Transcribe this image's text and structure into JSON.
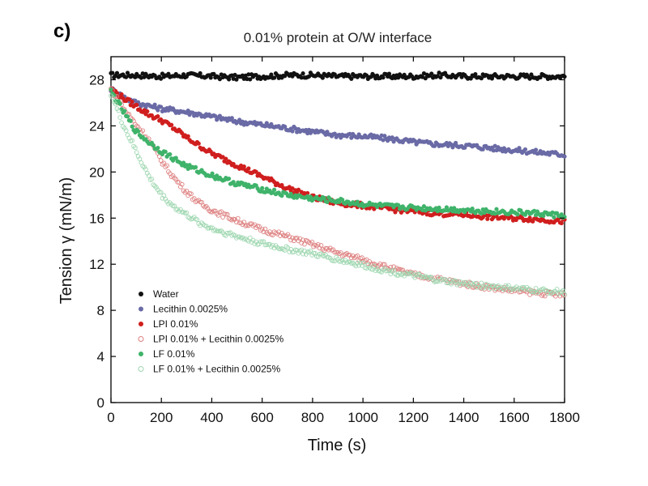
{
  "figure": {
    "panel_label": "c)"
  },
  "chart_data": {
    "type": "scatter",
    "title": "0.01% protein at O/W interface",
    "xlabel": "Time (s)",
    "ylabel": "Tension γ (mN/m)",
    "xlim": [
      0,
      1800
    ],
    "ylim": [
      0,
      30
    ],
    "xticks": [
      0,
      200,
      400,
      600,
      800,
      1000,
      1200,
      1400,
      1600,
      1800
    ],
    "yticks": [
      0,
      4,
      8,
      12,
      16,
      20,
      24,
      28
    ],
    "grid": false,
    "legend_position": "bottom-left",
    "series": [
      {
        "name": "Water",
        "color": "#111111",
        "marker": "filled",
        "points": [
          [
            0,
            28.4
          ],
          [
            100,
            28.4
          ],
          [
            200,
            28.3
          ],
          [
            300,
            28.4
          ],
          [
            400,
            28.3
          ],
          [
            500,
            28.2
          ],
          [
            600,
            28.3
          ],
          [
            700,
            28.4
          ],
          [
            800,
            28.4
          ],
          [
            900,
            28.3
          ],
          [
            1000,
            28.3
          ],
          [
            1100,
            28.3
          ],
          [
            1200,
            28.3
          ],
          [
            1300,
            28.4
          ],
          [
            1400,
            28.3
          ],
          [
            1500,
            28.3
          ],
          [
            1600,
            28.3
          ],
          [
            1700,
            28.3
          ],
          [
            1800,
            28.3
          ]
        ]
      },
      {
        "name": "Lecithin 0.0025%",
        "color": "#6a6aa6",
        "marker": "filled",
        "points": [
          [
            0,
            27.2
          ],
          [
            50,
            26.5
          ],
          [
            100,
            26.0
          ],
          [
            200,
            25.5
          ],
          [
            300,
            25.2
          ],
          [
            400,
            24.8
          ],
          [
            500,
            24.4
          ],
          [
            600,
            24.1
          ],
          [
            700,
            23.8
          ],
          [
            800,
            23.5
          ],
          [
            900,
            23.2
          ],
          [
            1000,
            23.1
          ],
          [
            1100,
            22.9
          ],
          [
            1200,
            22.6
          ],
          [
            1300,
            22.4
          ],
          [
            1400,
            22.3
          ],
          [
            1500,
            22.1
          ],
          [
            1600,
            21.9
          ],
          [
            1700,
            21.7
          ],
          [
            1800,
            21.5
          ]
        ]
      },
      {
        "name": "LPI 0.01%",
        "color": "#d01e1e",
        "marker": "filled",
        "points": [
          [
            0,
            27.2
          ],
          [
            50,
            26.4
          ],
          [
            100,
            25.7
          ],
          [
            150,
            25.0
          ],
          [
            200,
            24.5
          ],
          [
            250,
            23.8
          ],
          [
            300,
            23.0
          ],
          [
            400,
            21.6
          ],
          [
            500,
            20.6
          ],
          [
            600,
            19.6
          ],
          [
            700,
            18.6
          ],
          [
            800,
            17.8
          ],
          [
            900,
            17.3
          ],
          [
            1000,
            17.1
          ],
          [
            1100,
            16.8
          ],
          [
            1200,
            16.6
          ],
          [
            1300,
            16.4
          ],
          [
            1400,
            16.3
          ],
          [
            1500,
            16.1
          ],
          [
            1600,
            16.0
          ],
          [
            1700,
            15.9
          ],
          [
            1800,
            15.7
          ]
        ]
      },
      {
        "name": "LPI 0.01% + Lecithin 0.0025%",
        "color": "#de8080",
        "marker": "open",
        "points": [
          [
            0,
            27.2
          ],
          [
            50,
            25.5
          ],
          [
            100,
            24.1
          ],
          [
            150,
            22.8
          ],
          [
            200,
            21.0
          ],
          [
            250,
            19.5
          ],
          [
            300,
            18.3
          ],
          [
            350,
            17.3
          ],
          [
            400,
            16.7
          ],
          [
            500,
            15.8
          ],
          [
            600,
            15.0
          ],
          [
            700,
            14.4
          ],
          [
            800,
            13.7
          ],
          [
            900,
            13.0
          ],
          [
            1000,
            12.4
          ],
          [
            1100,
            11.7
          ],
          [
            1200,
            11.1
          ],
          [
            1300,
            10.7
          ],
          [
            1400,
            10.3
          ],
          [
            1500,
            10.0
          ],
          [
            1600,
            9.7
          ],
          [
            1700,
            9.5
          ],
          [
            1800,
            9.3
          ]
        ]
      },
      {
        "name": "LF 0.01%",
        "color": "#3fb36a",
        "marker": "filled",
        "points": [
          [
            0,
            27.0
          ],
          [
            50,
            25.2
          ],
          [
            100,
            23.5
          ],
          [
            150,
            22.6
          ],
          [
            200,
            21.8
          ],
          [
            300,
            20.5
          ],
          [
            400,
            19.7
          ],
          [
            500,
            19.0
          ],
          [
            600,
            18.5
          ],
          [
            700,
            18.0
          ],
          [
            800,
            17.7
          ],
          [
            900,
            17.5
          ],
          [
            1000,
            17.2
          ],
          [
            1100,
            17.0
          ],
          [
            1200,
            16.9
          ],
          [
            1300,
            16.8
          ],
          [
            1400,
            16.7
          ],
          [
            1500,
            16.6
          ],
          [
            1600,
            16.5
          ],
          [
            1700,
            16.4
          ],
          [
            1800,
            16.2
          ]
        ]
      },
      {
        "name": "LF 0.01% + Lecithin 0.0025%",
        "color": "#9ed7b0",
        "marker": "open",
        "points": [
          [
            0,
            26.8
          ],
          [
            50,
            24.0
          ],
          [
            100,
            21.8
          ],
          [
            150,
            19.6
          ],
          [
            200,
            18.0
          ],
          [
            250,
            17.0
          ],
          [
            300,
            16.3
          ],
          [
            350,
            15.6
          ],
          [
            400,
            15.1
          ],
          [
            500,
            14.4
          ],
          [
            600,
            13.8
          ],
          [
            700,
            13.3
          ],
          [
            800,
            12.9
          ],
          [
            900,
            12.4
          ],
          [
            1000,
            11.9
          ],
          [
            1100,
            11.4
          ],
          [
            1200,
            11.0
          ],
          [
            1300,
            10.6
          ],
          [
            1400,
            10.3
          ],
          [
            1500,
            10.1
          ],
          [
            1600,
            9.9
          ],
          [
            1700,
            9.7
          ],
          [
            1800,
            9.6
          ]
        ]
      }
    ]
  }
}
